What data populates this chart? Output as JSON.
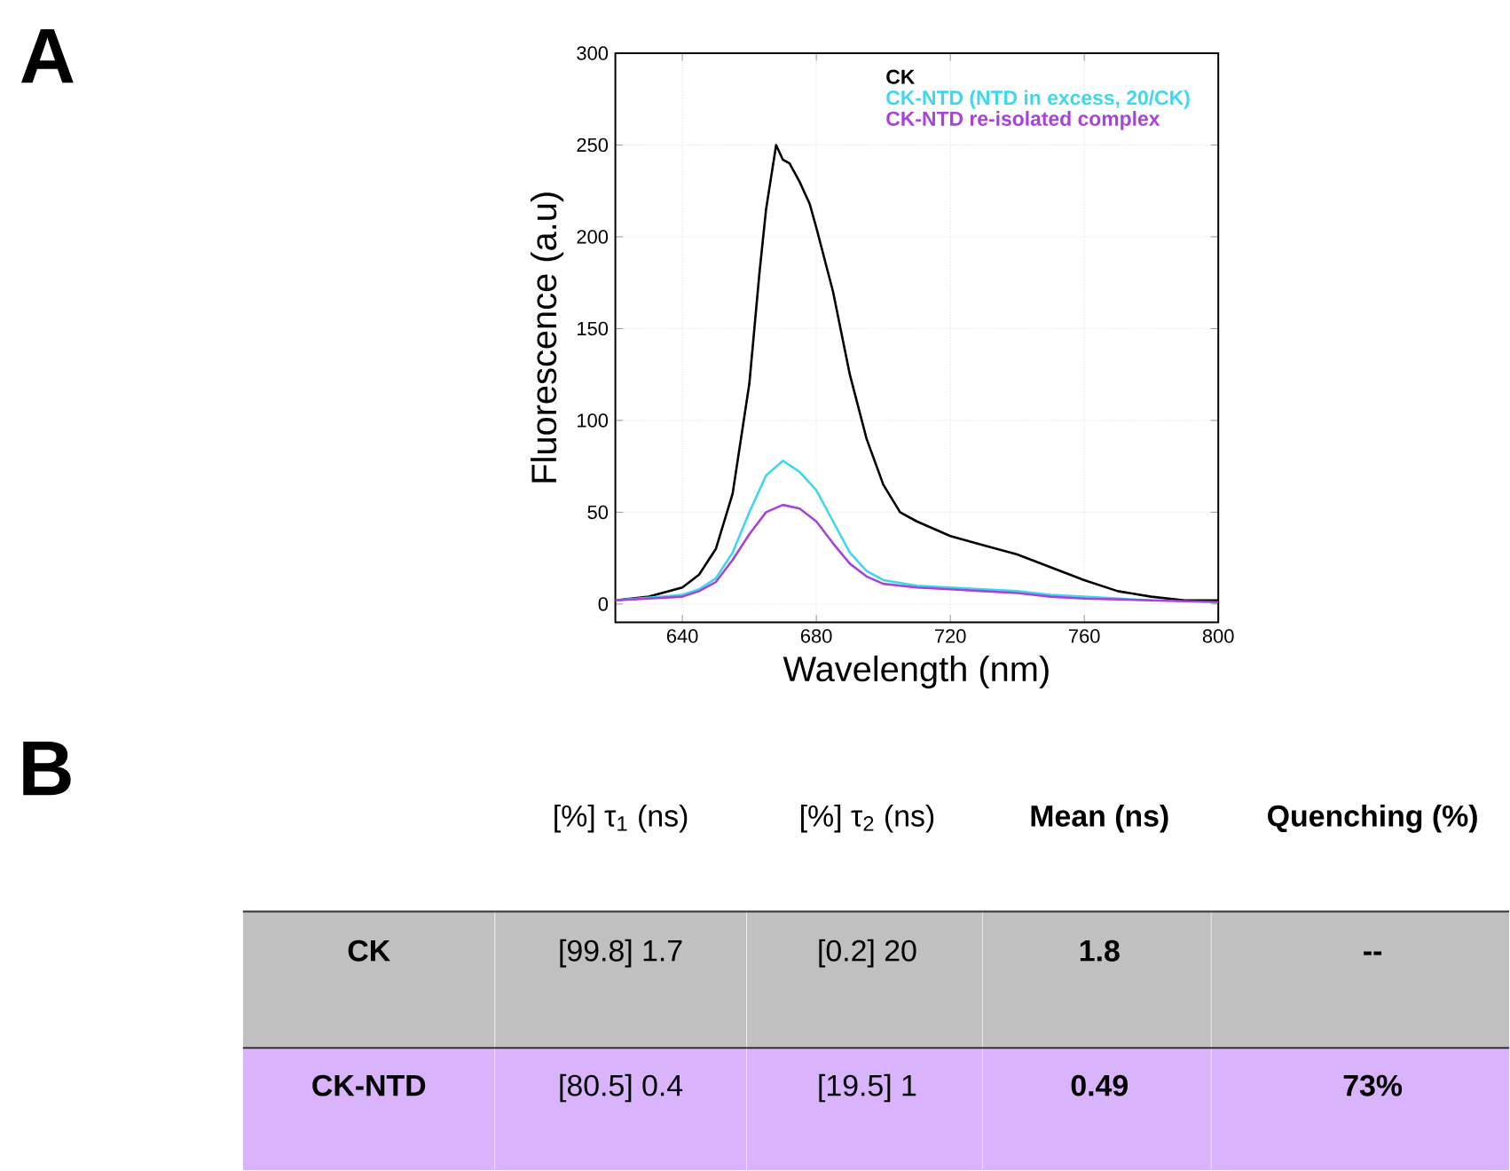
{
  "chart_data": {
    "type": "line",
    "title": "A",
    "xlabel": "Wavelength (nm)",
    "ylabel": "Fluorescence (a.u)",
    "xlim": [
      620,
      800
    ],
    "ylim": [
      -10,
      300
    ],
    "xticks": [
      640,
      680,
      720,
      760,
      800
    ],
    "yticks": [
      0,
      50,
      100,
      150,
      200,
      250,
      300
    ],
    "grid": true,
    "legend": "top right",
    "series": [
      {
        "name": "CK",
        "color": "#000000",
        "x": [
          620,
          630,
          640,
          645,
          650,
          655,
          660,
          663,
          665,
          668,
          670,
          672,
          675,
          678,
          680,
          685,
          690,
          695,
          700,
          705,
          710,
          720,
          730,
          740,
          750,
          760,
          770,
          780,
          790,
          800
        ],
        "values": [
          2,
          4,
          9,
          16,
          30,
          60,
          120,
          180,
          215,
          250,
          242,
          240,
          230,
          218,
          205,
          170,
          125,
          90,
          65,
          50,
          45,
          37,
          32,
          27,
          20,
          13,
          7,
          4,
          2,
          2
        ]
      },
      {
        "name": "CK-NTD (NTD in excess, 20/CK)",
        "color": "#3fd7f0",
        "x": [
          620,
          640,
          645,
          650,
          655,
          660,
          665,
          670,
          675,
          680,
          685,
          690,
          695,
          700,
          710,
          720,
          730,
          740,
          750,
          760,
          780
        ],
        "values": [
          2,
          5,
          8,
          14,
          28,
          50,
          70,
          78,
          72,
          62,
          45,
          28,
          18,
          13,
          10,
          9,
          8,
          7,
          5,
          4,
          2
        ]
      },
      {
        "name": "CK-NTD re-isolated complex",
        "color": "#a744d8",
        "x": [
          620,
          640,
          645,
          650,
          655,
          660,
          665,
          670,
          675,
          680,
          685,
          690,
          695,
          700,
          710,
          720,
          730,
          740,
          750,
          760,
          780,
          800
        ],
        "values": [
          2,
          4,
          7,
          12,
          24,
          38,
          50,
          54,
          52,
          45,
          33,
          22,
          15,
          11,
          9,
          8,
          7,
          6,
          4,
          3,
          2,
          1
        ]
      }
    ],
    "annotations": [
      "B",
      "[%] τ$_{1}$ (ns)",
      "[%] τ$_{2}$ (ns)",
      "Mean (ns)",
      "Quenching (%)",
      "CK",
      "[99.8] 1.7",
      "[0.2] 20",
      "1.8",
      "--",
      "CK-NTD",
      "[80.5] 0.4",
      "[19.5] 1",
      "0.49",
      "73%"
    ]
  }
}
